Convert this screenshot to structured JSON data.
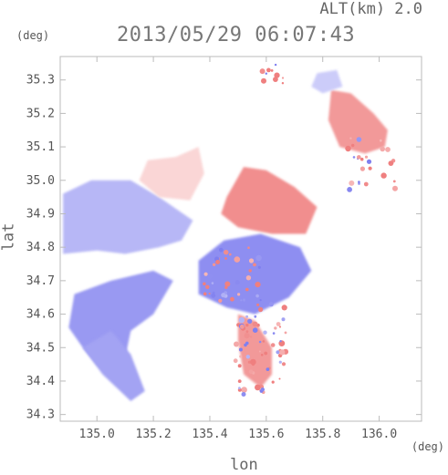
{
  "header": {
    "altitude_label": "ALT(km) 2.0",
    "timestamp": "2013/05/29 06:07:43"
  },
  "axes": {
    "y_unit": "(deg)",
    "x_unit": "(deg)",
    "xlabel": "lon",
    "ylabel": "lat"
  },
  "chart_data": {
    "type": "heatmap",
    "description_colormap": "diverging blue-white-red",
    "colors": {
      "negative": "#7f7fef",
      "neutral": "#ffffff",
      "positive": "#ef7f7f",
      "frame": "#cccccc"
    },
    "xlim": [
      134.87,
      136.15
    ],
    "ylim": [
      34.28,
      35.37
    ],
    "xticks": [
      "135.0",
      "135.2",
      "135.4",
      "135.6",
      "135.8",
      "136.0"
    ],
    "xtick_values": [
      135.0,
      135.2,
      135.4,
      135.6,
      135.8,
      136.0
    ],
    "yticks": [
      "34.3",
      "34.4",
      "34.5",
      "34.6",
      "34.7",
      "34.8",
      "34.9",
      "35.0",
      "35.1",
      "35.2",
      "35.3"
    ],
    "ytick_values": [
      34.3,
      34.4,
      34.5,
      34.6,
      34.7,
      34.8,
      34.9,
      35.0,
      35.1,
      35.2,
      35.3
    ],
    "regions": [
      {
        "name": "west-blue-sector",
        "sign": "negative",
        "strength": 0.35,
        "points": [
          [
            134.88,
            34.96
          ],
          [
            134.98,
            35.0
          ],
          [
            135.12,
            35.0
          ],
          [
            135.22,
            34.95
          ],
          [
            135.34,
            34.88
          ],
          [
            135.3,
            34.82
          ],
          [
            135.22,
            34.8
          ],
          [
            135.1,
            34.78
          ],
          [
            135.0,
            34.79
          ],
          [
            134.88,
            34.78
          ]
        ]
      },
      {
        "name": "northwest-pink-sector",
        "sign": "positive",
        "strength": 0.2,
        "points": [
          [
            135.18,
            35.06
          ],
          [
            135.28,
            35.07
          ],
          [
            135.36,
            35.1
          ],
          [
            135.38,
            35.02
          ],
          [
            135.33,
            34.94
          ],
          [
            135.22,
            34.95
          ],
          [
            135.15,
            35.0
          ]
        ]
      },
      {
        "name": "southwest-blue-sector",
        "sign": "negative",
        "strength": 0.5,
        "points": [
          [
            134.92,
            34.66
          ],
          [
            135.05,
            34.7
          ],
          [
            135.2,
            34.73
          ],
          [
            135.27,
            34.7
          ],
          [
            135.2,
            34.6
          ],
          [
            135.12,
            34.55
          ],
          [
            135.1,
            34.47
          ],
          [
            135.15,
            34.37
          ],
          [
            135.07,
            34.4
          ],
          [
            135.0,
            34.45
          ],
          [
            134.95,
            34.5
          ],
          [
            134.9,
            34.56
          ]
        ]
      },
      {
        "name": "south-blue-wedge",
        "sign": "negative",
        "strength": 0.45,
        "points": [
          [
            134.95,
            34.5
          ],
          [
            135.05,
            34.55
          ],
          [
            135.12,
            34.48
          ],
          [
            135.17,
            34.37
          ],
          [
            135.12,
            34.34
          ],
          [
            135.02,
            34.42
          ]
        ]
      },
      {
        "name": "central-blue-cone",
        "sign": "negative",
        "strength": 0.55,
        "points": [
          [
            135.36,
            34.76
          ],
          [
            135.45,
            34.82
          ],
          [
            135.58,
            34.84
          ],
          [
            135.72,
            34.8
          ],
          [
            135.76,
            34.73
          ],
          [
            135.68,
            34.65
          ],
          [
            135.56,
            34.6
          ],
          [
            135.46,
            34.62
          ],
          [
            135.36,
            34.66
          ]
        ]
      },
      {
        "name": "central-red-band",
        "sign": "positive",
        "strength": 0.55,
        "points": [
          [
            135.46,
            34.95
          ],
          [
            135.52,
            35.04
          ],
          [
            135.6,
            35.03
          ],
          [
            135.7,
            34.98
          ],
          [
            135.78,
            34.92
          ],
          [
            135.74,
            34.84
          ],
          [
            135.62,
            34.84
          ],
          [
            135.5,
            34.86
          ],
          [
            135.44,
            34.9
          ]
        ]
      },
      {
        "name": "northeast-red-cluster",
        "sign": "positive",
        "strength": 0.5,
        "points": [
          [
            135.83,
            35.27
          ],
          [
            135.9,
            35.26
          ],
          [
            135.98,
            35.2
          ],
          [
            136.03,
            35.15
          ],
          [
            136.02,
            35.1
          ],
          [
            135.95,
            35.08
          ],
          [
            135.86,
            35.1
          ],
          [
            135.82,
            35.18
          ]
        ]
      },
      {
        "name": "northeast-blue-patch",
        "sign": "negative",
        "strength": 0.25,
        "points": [
          [
            135.78,
            35.32
          ],
          [
            135.85,
            35.33
          ],
          [
            135.87,
            35.28
          ],
          [
            135.8,
            35.26
          ],
          [
            135.76,
            35.28
          ]
        ]
      },
      {
        "name": "south-mixed-clutter",
        "sign": "positive",
        "strength": 0.5,
        "points": [
          [
            135.5,
            34.6
          ],
          [
            135.56,
            34.58
          ],
          [
            135.62,
            34.5
          ],
          [
            135.62,
            34.42
          ],
          [
            135.58,
            34.38
          ],
          [
            135.52,
            34.42
          ],
          [
            135.5,
            34.52
          ]
        ]
      }
    ]
  }
}
